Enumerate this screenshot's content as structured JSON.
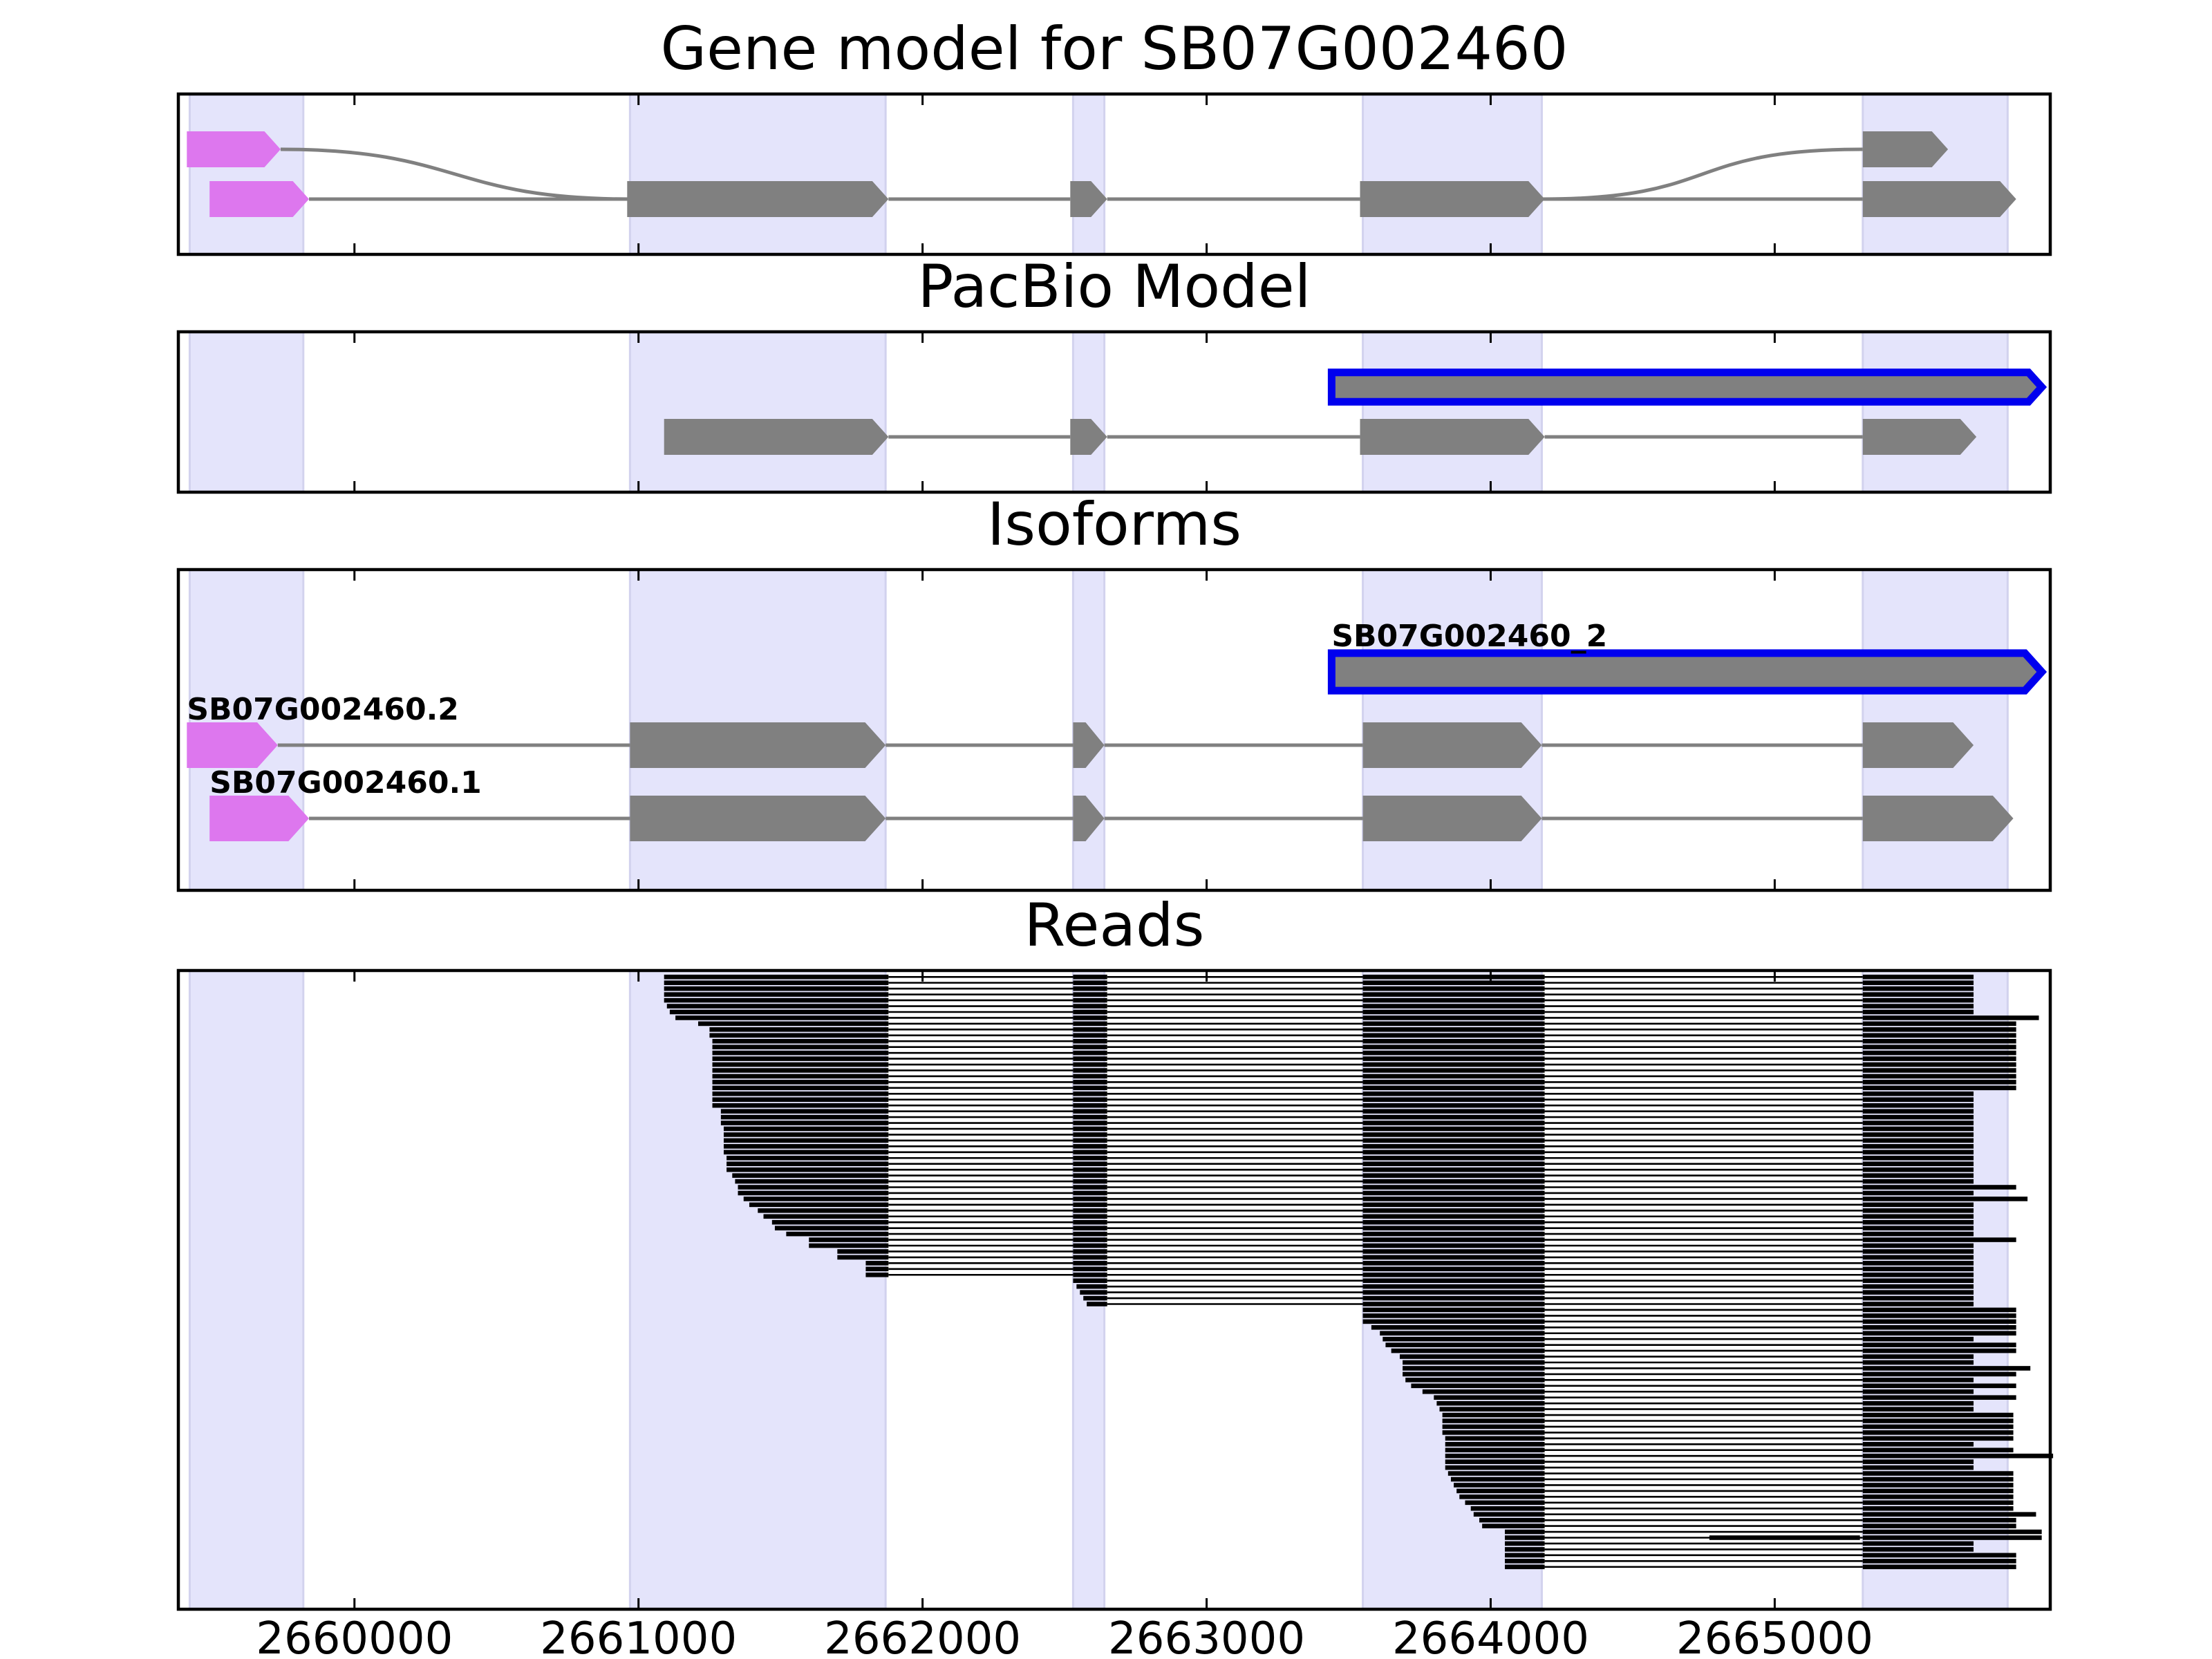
{
  "chart_data": {
    "type": "gene_track",
    "x_range": [
      2659380,
      2665970
    ],
    "x_ticks": [
      2660000,
      2661000,
      2662000,
      2663000,
      2664000,
      2665000
    ],
    "x_tick_labels": [
      "2660000",
      "2661000",
      "2662000",
      "2663000",
      "2664000",
      "2665000"
    ],
    "exon_regions": [
      [
        2659420,
        2659820
      ],
      [
        2660970,
        2661870
      ],
      [
        2662530,
        2662640
      ],
      [
        2663550,
        2664180
      ],
      [
        2665310,
        2665820
      ]
    ],
    "colors": {
      "exon": "#808080",
      "utr": "#dd77ee",
      "intron": "#808080",
      "highlight": "#0000ee",
      "shade": "#e4e4fb",
      "read": "#000000"
    },
    "panels": [
      {
        "title": "Gene model for SB07G002460",
        "rows": 2,
        "models": [
          {
            "label": "",
            "row": 0,
            "spliced_link": true,
            "blocks": [
              {
                "start": 2659410,
                "end": 2659740,
                "kind": "utr"
              },
              {
                "start": 2665310,
                "end": 2665610,
                "kind": "exon"
              }
            ]
          },
          {
            "label": "",
            "row": 1,
            "blocks": [
              {
                "start": 2659490,
                "end": 2659840,
                "kind": "utr"
              },
              {
                "start": 2660960,
                "end": 2661880,
                "kind": "exon"
              },
              {
                "start": 2662520,
                "end": 2662650,
                "kind": "exon"
              },
              {
                "start": 2663540,
                "end": 2664190,
                "kind": "exon"
              },
              {
                "start": 2665310,
                "end": 2665850,
                "kind": "exon"
              }
            ]
          }
        ]
      },
      {
        "title": "PacBio Model",
        "rows": 2,
        "models": [
          {
            "label": "",
            "row": 0,
            "highlight": true,
            "blocks": [
              {
                "start": 2663440,
                "end": 2665940,
                "kind": "exon"
              }
            ]
          },
          {
            "label": "",
            "row": 1,
            "blocks": [
              {
                "start": 2661090,
                "end": 2661880,
                "kind": "exon"
              },
              {
                "start": 2662520,
                "end": 2662650,
                "kind": "exon"
              },
              {
                "start": 2663540,
                "end": 2664190,
                "kind": "exon"
              },
              {
                "start": 2665310,
                "end": 2665710,
                "kind": "exon"
              }
            ]
          }
        ]
      },
      {
        "title": "Isoforms",
        "rows": 3,
        "models": [
          {
            "label": "SB07G002460_2",
            "row": 0,
            "highlight": true,
            "blocks": [
              {
                "start": 2663440,
                "end": 2665940,
                "kind": "exon"
              }
            ]
          },
          {
            "label": "SB07G002460.2",
            "row": 1,
            "blocks": [
              {
                "start": 2659410,
                "end": 2659730,
                "kind": "utr"
              },
              {
                "start": 2660970,
                "end": 2661870,
                "kind": "exon"
              },
              {
                "start": 2662530,
                "end": 2662640,
                "kind": "exon"
              },
              {
                "start": 2663550,
                "end": 2664180,
                "kind": "exon"
              },
              {
                "start": 2665310,
                "end": 2665700,
                "kind": "exon"
              }
            ]
          },
          {
            "label": "SB07G002460.1",
            "row": 2,
            "blocks": [
              {
                "start": 2659490,
                "end": 2659840,
                "kind": "utr"
              },
              {
                "start": 2660970,
                "end": 2661870,
                "kind": "exon"
              },
              {
                "start": 2662530,
                "end": 2662640,
                "kind": "exon"
              },
              {
                "start": 2663550,
                "end": 2664180,
                "kind": "exon"
              },
              {
                "start": 2665310,
                "end": 2665840,
                "kind": "exon"
              }
            ]
          }
        ]
      },
      {
        "title": "Reads",
        "rows": 1,
        "models": []
      }
    ],
    "reads": {
      "exon_ends": [
        2661880,
        2662650,
        2664190,
        2665700
      ],
      "group_a": {
        "count": 52,
        "exon2_start": 2662530,
        "exon3_start": 2663550,
        "first_exon_starts": [
          2661090,
          2661090,
          2661090,
          2661090,
          2661090,
          2661100,
          2661110,
          2661130,
          2661210,
          2661250,
          2661250,
          2661260,
          2661260,
          2661260,
          2661260,
          2661260,
          2661260,
          2661260,
          2661260,
          2661260,
          2661260,
          2661260,
          2661260,
          2661290,
          2661290,
          2661290,
          2661300,
          2661300,
          2661300,
          2661300,
          2661300,
          2661310,
          2661310,
          2661310,
          2661330,
          2661340,
          2661350,
          2661350,
          2661370,
          2661390,
          2661420,
          2661440,
          2661470,
          2661480,
          2661520,
          2661600,
          2661600,
          2661700,
          2661700,
          2661800,
          2661800,
          2661800
        ],
        "extra_end_rows": [
          7,
          8,
          9,
          10,
          11,
          12,
          13,
          14,
          15,
          16,
          17,
          18,
          19,
          36,
          38,
          45
        ],
        "extra_end_coords": [
          2665930,
          2665850,
          2665850,
          2665850,
          2665850,
          2665850,
          2665850,
          2665850,
          2665850,
          2665850,
          2665850,
          2665850,
          2665850,
          2665850,
          2665890,
          2665850
        ]
      },
      "group_b": {
        "count": 5,
        "exon2_start": 2662530,
        "exon2_end": 2662650,
        "exon3_start": 2663550
      },
      "group_c": {
        "count": 45,
        "first_exon_starts": [
          2663550,
          2663550,
          2663550,
          2663580,
          2663610,
          2663620,
          2663630,
          2663650,
          2663680,
          2663690,
          2663690,
          2663690,
          2663700,
          2663720,
          2663760,
          2663800,
          2663810,
          2663820,
          2663830,
          2663830,
          2663830,
          2663830,
          2663840,
          2663840,
          2663840,
          2663840,
          2663840,
          2663840,
          2663850,
          2663860,
          2663870,
          2663880,
          2663890,
          2663910,
          2663930,
          2663940,
          2663960,
          2663970,
          2664050,
          2664050,
          2664050,
          2664050,
          2664050,
          2664050,
          2664050
        ],
        "last_exon_ends": [
          2665850,
          2665850,
          2665850,
          2665850,
          2665850,
          2665700,
          2665850,
          2665850,
          2665700,
          2665700,
          2665900,
          2665850,
          2665700,
          2665850,
          2665700,
          2665850,
          2665700,
          2665700,
          2665840,
          2665840,
          2665840,
          2665840,
          2665840,
          2665700,
          2665840,
          2665980,
          2665700,
          2665700,
          2665840,
          2665840,
          2665840,
          2665840,
          2665840,
          2665840,
          2665840,
          2665920,
          2665850,
          2665850,
          2665940,
          2665940,
          2665700,
          2665700,
          2665850,
          2665850,
          2665850
        ],
        "extra_reads": [
          {
            "start": 2664770,
            "end": 2665300,
            "row": 39
          }
        ]
      }
    }
  }
}
